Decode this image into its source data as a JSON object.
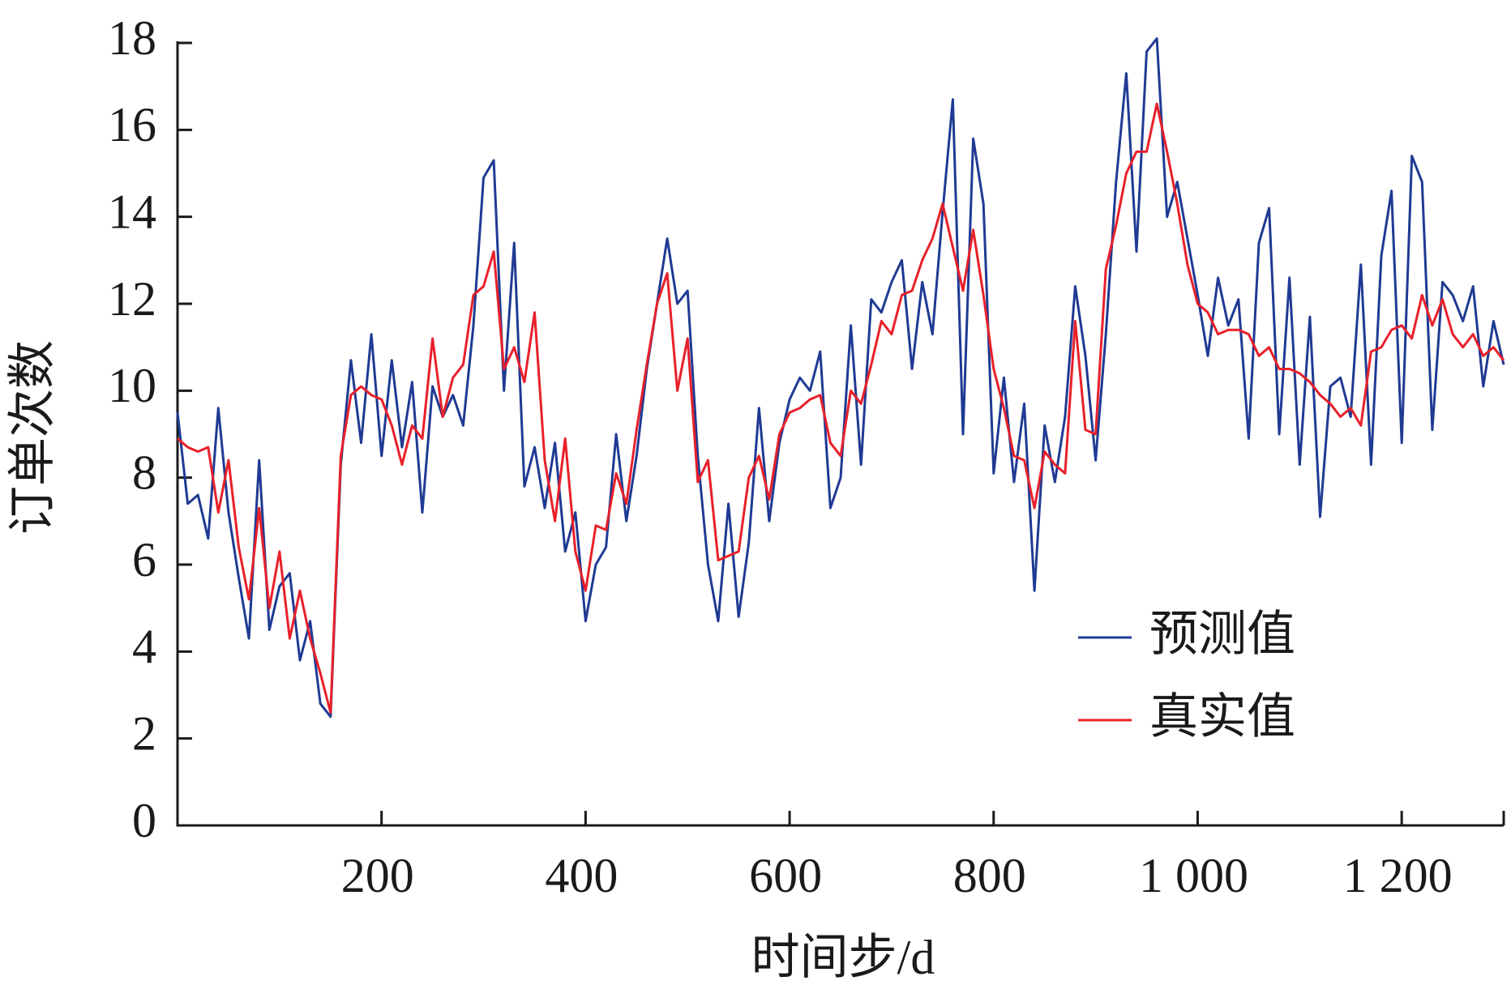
{
  "chart_data": {
    "type": "line",
    "xlabel": "时间步/d",
    "ylabel": "订单次数",
    "x": [
      0,
      10,
      20,
      30,
      40,
      50,
      60,
      70,
      80,
      90,
      100,
      110,
      120,
      130,
      140,
      150,
      160,
      170,
      180,
      190,
      200,
      210,
      220,
      230,
      240,
      250,
      260,
      270,
      280,
      290,
      300,
      310,
      320,
      330,
      340,
      350,
      360,
      370,
      380,
      390,
      400,
      410,
      420,
      430,
      440,
      450,
      460,
      470,
      480,
      490,
      500,
      510,
      520,
      530,
      540,
      550,
      560,
      570,
      580,
      590,
      600,
      610,
      620,
      630,
      640,
      650,
      660,
      670,
      680,
      690,
      700,
      710,
      720,
      730,
      740,
      750,
      760,
      770,
      780,
      790,
      800,
      810,
      820,
      830,
      840,
      850,
      860,
      870,
      880,
      890,
      900,
      910,
      920,
      930,
      940,
      950,
      960,
      970,
      980,
      990,
      1000,
      1010,
      1020,
      1030,
      1040,
      1050,
      1060,
      1070,
      1080,
      1090,
      1100,
      1110,
      1120,
      1130,
      1140,
      1150,
      1160,
      1170,
      1180,
      1190,
      1200,
      1210,
      1220,
      1230,
      1240,
      1250,
      1260,
      1270,
      1280,
      1290,
      1300
    ],
    "series": [
      {
        "name": "预测值",
        "color": "#1f3a93",
        "values": [
          9.5,
          7.4,
          7.6,
          6.6,
          9.6,
          7.2,
          5.7,
          4.3,
          8.4,
          4.5,
          5.5,
          5.8,
          3.8,
          4.7,
          2.8,
          2.5,
          8.3,
          10.7,
          8.8,
          11.3,
          8.5,
          10.7,
          8.7,
          10.2,
          7.2,
          10.1,
          9.4,
          9.9,
          9.2,
          11.5,
          14.9,
          15.3,
          10.0,
          13.4,
          7.8,
          8.7,
          7.3,
          8.8,
          6.3,
          7.2,
          4.7,
          6.0,
          6.4,
          9.0,
          7.0,
          8.5,
          10.5,
          12.0,
          13.5,
          12.0,
          12.3,
          8.5,
          6.0,
          4.7,
          7.4,
          4.8,
          6.5,
          9.6,
          7.0,
          8.8,
          9.8,
          10.3,
          10.0,
          10.9,
          7.3,
          8.0,
          11.5,
          8.3,
          12.1,
          11.8,
          12.5,
          13.0,
          10.5,
          12.5,
          11.3,
          14.1,
          16.7,
          9.0,
          15.8,
          14.3,
          8.1,
          10.3,
          7.9,
          9.7,
          5.4,
          9.2,
          7.9,
          9.4,
          12.4,
          10.8,
          8.4,
          11.3,
          14.8,
          17.3,
          13.2,
          17.8,
          18.1,
          14.0,
          14.8,
          13.5,
          12.2,
          10.8,
          12.6,
          11.5,
          12.1,
          8.9,
          13.4,
          14.2,
          9.0,
          12.6,
          8.3,
          11.7,
          7.1,
          10.1,
          10.3,
          9.4,
          12.9,
          8.3,
          13.1,
          14.6,
          8.8,
          15.4,
          14.8,
          9.1,
          12.5,
          12.2,
          11.6,
          12.4,
          10.1,
          11.6,
          10.6
        ]
      },
      {
        "name": "真实值",
        "color": "#e8202a",
        "values": [
          8.9,
          8.7,
          8.6,
          8.7,
          7.2,
          8.4,
          6.4,
          5.2,
          7.3,
          5.0,
          6.3,
          4.3,
          5.4,
          4.3,
          3.5,
          2.6,
          8.5,
          9.9,
          10.1,
          9.9,
          9.8,
          9.2,
          8.3,
          9.2,
          8.9,
          11.2,
          9.4,
          10.3,
          10.6,
          12.2,
          12.4,
          13.2,
          10.5,
          11.0,
          10.2,
          11.8,
          8.4,
          7.0,
          8.9,
          6.3,
          5.4,
          6.9,
          6.8,
          8.1,
          7.4,
          9.1,
          10.6,
          12.0,
          12.7,
          10.0,
          11.2,
          7.9,
          8.4,
          6.1,
          6.2,
          6.3,
          8.0,
          8.5,
          7.5,
          9.0,
          9.5,
          9.6,
          9.8,
          9.9,
          8.8,
          8.5,
          10.0,
          9.7,
          10.6,
          11.6,
          11.3,
          12.2,
          12.3,
          13.0,
          13.5,
          14.3,
          13.3,
          12.3,
          13.7,
          12.2,
          10.5,
          9.6,
          8.5,
          8.4,
          7.3,
          8.6,
          8.3,
          8.1,
          11.6,
          9.1,
          9.0,
          12.8,
          13.8,
          15.0,
          15.5,
          15.5,
          16.6,
          15.5,
          14.3,
          12.9,
          12.0,
          11.8,
          11.3,
          11.4,
          11.4,
          11.3,
          10.8,
          11.0,
          10.5,
          10.5,
          10.4,
          10.2,
          9.9,
          9.7,
          9.4,
          9.6,
          9.2,
          10.9,
          11.0,
          11.4,
          11.5,
          11.2,
          12.2,
          11.5,
          12.1,
          11.3,
          11.0,
          11.3,
          10.8,
          11.0,
          10.7
        ]
      }
    ],
    "xlim": [
      0,
      1300
    ],
    "ylim": [
      0,
      18
    ],
    "xticks": [
      200,
      400,
      600,
      800,
      {
        "value": 1000,
        "label": "1 000"
      },
      {
        "value": 1200,
        "label": "1 200"
      }
    ],
    "yticks": [
      0,
      2,
      4,
      6,
      8,
      10,
      12,
      14,
      16,
      18
    ],
    "grid": false,
    "legend": "lower right"
  }
}
